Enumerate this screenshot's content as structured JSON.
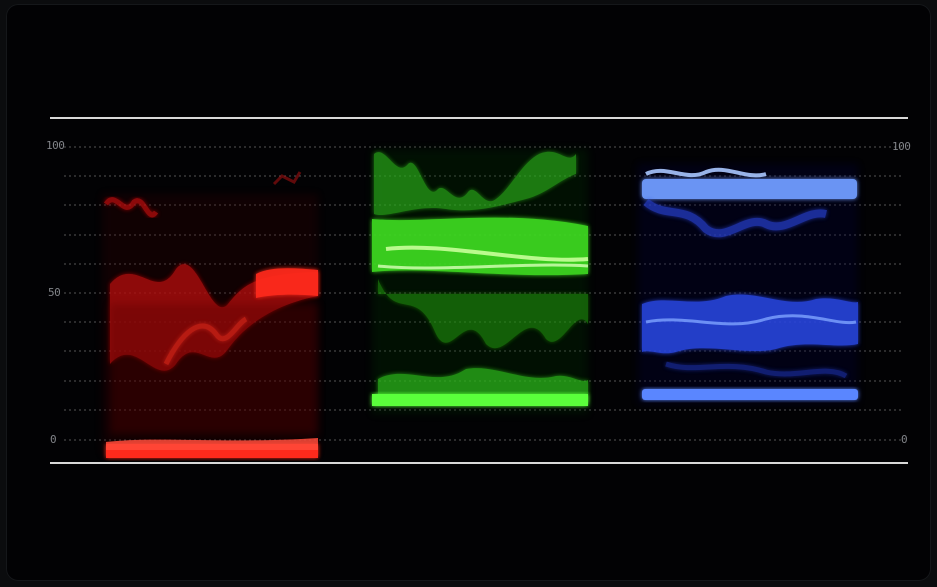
{
  "scope": {
    "scale_left": {
      "top": "100",
      "mid": "50",
      "bottom": "0"
    },
    "scale_right": {
      "top": "100",
      "bottom": "0"
    },
    "channels": [
      {
        "name": "red",
        "color": "#ff2a1e"
      },
      {
        "name": "green",
        "color": "#4dff2e"
      },
      {
        "name": "blue",
        "color": "#3b63ff"
      }
    ]
  }
}
